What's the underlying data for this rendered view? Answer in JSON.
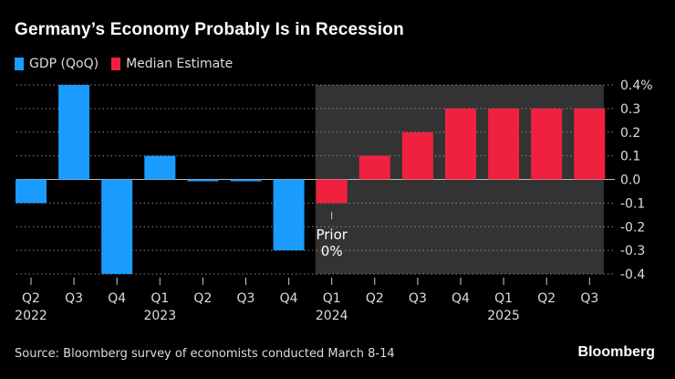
{
  "title": "Germany’s Economy Probably Is in Recession",
  "legend": [
    {
      "label": "GDP (QoQ)",
      "color": "#1a9cff"
    },
    {
      "label": "Median Estimate",
      "color": "#f0213f"
    }
  ],
  "source": "Source: Bloomberg survey of economists conducted March 8-14",
  "logo": "Bloomberg",
  "annotation": {
    "line1": "Prior",
    "line2": "0%"
  },
  "chart_data": {
    "type": "bar",
    "categories": [
      "Q2",
      "Q3",
      "Q4",
      "Q1",
      "Q2",
      "Q3",
      "Q4",
      "Q1",
      "Q2",
      "Q3",
      "Q4",
      "Q1",
      "Q2",
      "Q3"
    ],
    "year_labels": [
      "2022",
      "",
      "",
      "2023",
      "",
      "",
      "",
      "2024",
      "",
      "",
      "",
      "2025",
      "",
      ""
    ],
    "series": [
      {
        "name": "GDP (QoQ)",
        "values": [
          -0.1,
          0.4,
          -0.4,
          0.1,
          0.0,
          0.0,
          -0.3,
          null,
          null,
          null,
          null,
          null,
          null,
          null
        ]
      },
      {
        "name": "Median Estimate",
        "values": [
          null,
          null,
          null,
          null,
          null,
          null,
          null,
          -0.1,
          0.1,
          0.2,
          0.3,
          0.3,
          0.3,
          0.3
        ]
      }
    ],
    "yticks": [
      "0.4%",
      "0.3",
      "0.2",
      "0.1",
      "0.0",
      "-0.1",
      "-0.2",
      "-0.3",
      "-0.4"
    ],
    "ylim": [
      -0.4,
      0.4
    ],
    "y_axis_side": "right",
    "grid": true,
    "shaded_region": "forecast (Q1 2024 – Q3 2025)",
    "shade_color": "#333333"
  }
}
